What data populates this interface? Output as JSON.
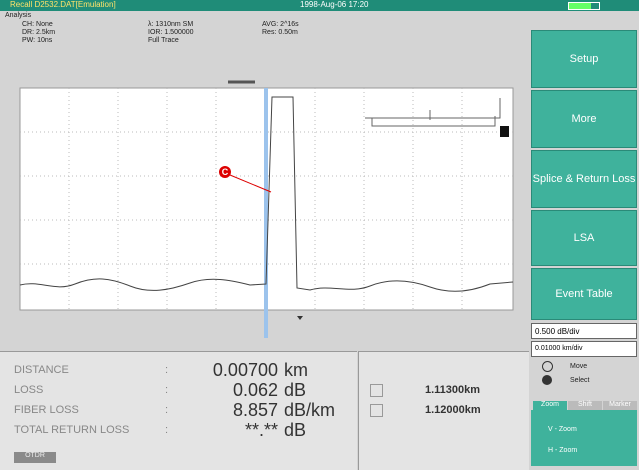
{
  "topbar": {
    "file": "Recall D2532.DAT[Emulation]",
    "datetime": "1998-Aug-06 17:20"
  },
  "header": {
    "title": "Analysis",
    "ch": "CH:",
    "ch_val": "None",
    "dr": "DR:",
    "dr_val": "2.5km",
    "pw": "PW:",
    "pw_val": "10ns",
    "lambda": "λ:",
    "lambda_val": "1310nm SM",
    "ior": "IOR:",
    "ior_val": "1.500000",
    "trace": "Full Trace",
    "avg": "AVG:",
    "avg_val": "2^16s",
    "res": "Res:",
    "res_val": "0.50m"
  },
  "marker": "C",
  "readout": {
    "rows": [
      {
        "label": "DISTANCE",
        "sep": ":",
        "value": "0.00700",
        "unit": "km"
      },
      {
        "label": "LOSS",
        "sep": ":",
        "value": "0.062",
        "unit": "dB"
      },
      {
        "label": "FIBER LOSS",
        "sep": ":",
        "value": "8.857",
        "unit": "dB/km"
      },
      {
        "label": "TOTAL RETURN LOSS",
        "sep": ":",
        "value": "**.**",
        "unit": "dB"
      }
    ],
    "button": "OTDR",
    "positions": [
      "1.11300km",
      "1.12000km"
    ]
  },
  "sidebar": {
    "buttons": [
      "Setup",
      "More",
      "Splice & Return Loss",
      "LSA",
      "Event Table"
    ],
    "vscale": "0.500 dB/div",
    "hscale": "0.01000 km/div",
    "move": "Move",
    "select": "Select",
    "tabs": [
      "Zoom",
      "Shift",
      "Marker"
    ],
    "vzoom": "V - Zoom",
    "hzoom": "H - Zoom"
  }
}
